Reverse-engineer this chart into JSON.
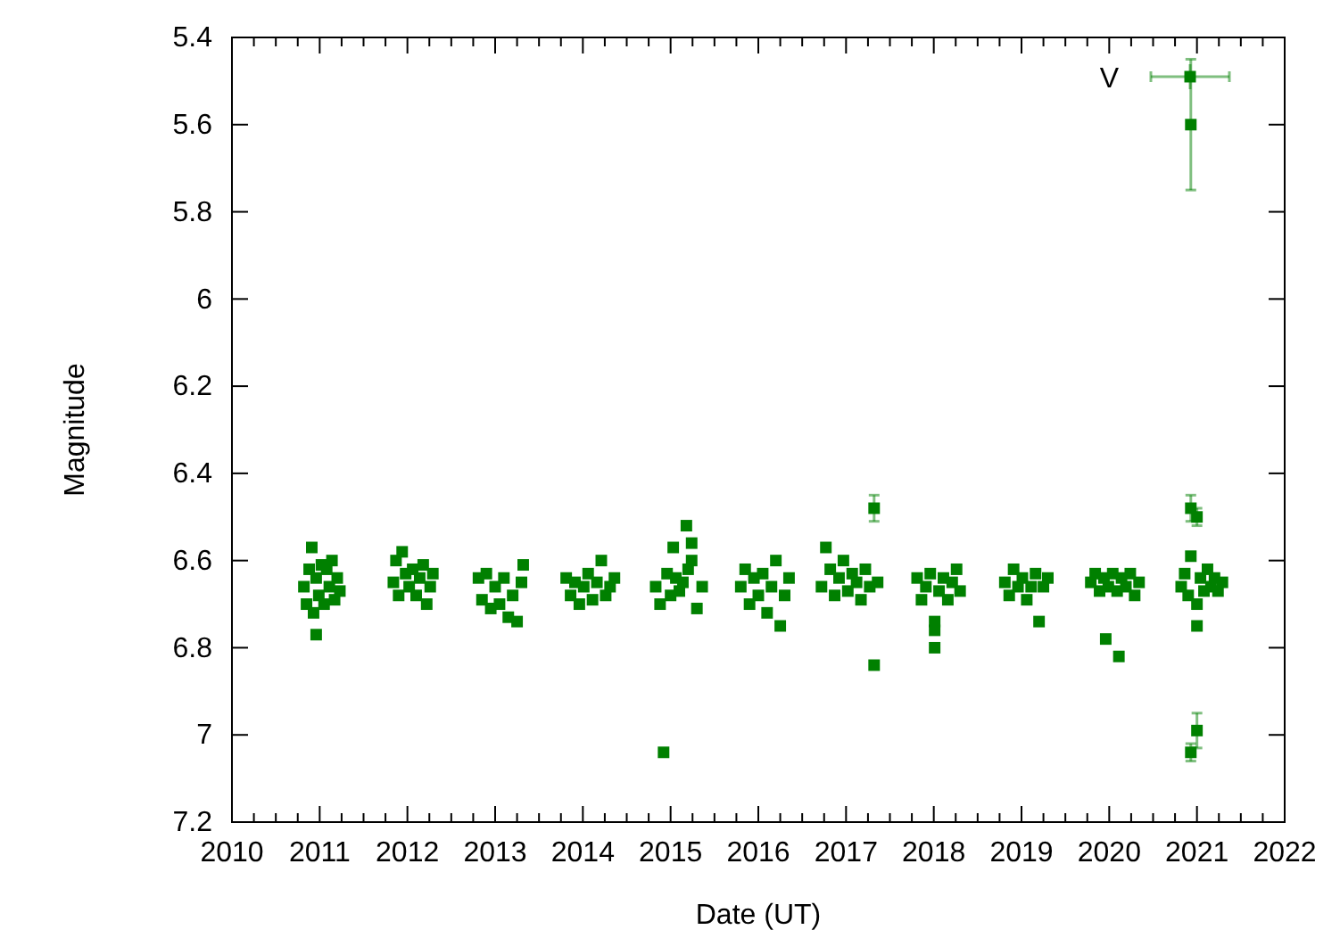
{
  "chart_data": {
    "type": "scatter",
    "xlabel": "Date (UT)",
    "ylabel": "Magnitude",
    "xlim": [
      2010,
      2022
    ],
    "ylim": [
      7.2,
      5.4
    ],
    "xticks": [
      2010,
      {
        "value": 2010.25,
        "label": null
      },
      {
        "value": 2010.5,
        "label": null
      },
      {
        "value": 2010.75,
        "label": null
      },
      2011,
      {
        "value": 2011.25,
        "label": null
      },
      {
        "value": 2011.5,
        "label": null
      },
      {
        "value": 2011.75,
        "label": null
      },
      2012,
      {
        "value": 2012.25,
        "label": null
      },
      {
        "value": 2012.5,
        "label": null
      },
      {
        "value": 2012.75,
        "label": null
      },
      2013,
      {
        "value": 2013.25,
        "label": null
      },
      {
        "value": 2013.5,
        "label": null
      },
      {
        "value": 2013.75,
        "label": null
      },
      2014,
      {
        "value": 2014.25,
        "label": null
      },
      {
        "value": 2014.5,
        "label": null
      },
      {
        "value": 2014.75,
        "label": null
      },
      2015,
      {
        "value": 2015.25,
        "label": null
      },
      {
        "value": 2015.5,
        "label": null
      },
      {
        "value": 2015.75,
        "label": null
      },
      2016,
      {
        "value": 2016.25,
        "label": null
      },
      {
        "value": 2016.5,
        "label": null
      },
      {
        "value": 2016.75,
        "label": null
      },
      2017,
      {
        "value": 2017.25,
        "label": null
      },
      {
        "value": 2017.5,
        "label": null
      },
      {
        "value": 2017.75,
        "label": null
      },
      2018,
      {
        "value": 2018.25,
        "label": null
      },
      {
        "value": 2018.5,
        "label": null
      },
      {
        "value": 2018.75,
        "label": null
      },
      2019,
      {
        "value": 2019.25,
        "label": null
      },
      {
        "value": 2019.5,
        "label": null
      },
      {
        "value": 2019.75,
        "label": null
      },
      2020,
      {
        "value": 2020.25,
        "label": null
      },
      {
        "value": 2020.5,
        "label": null
      },
      {
        "value": 2020.75,
        "label": null
      },
      2021,
      {
        "value": 2021.25,
        "label": null
      },
      {
        "value": 2021.5,
        "label": null
      },
      {
        "value": 2021.75,
        "label": null
      },
      2022
    ],
    "yticks": [
      5.4,
      5.6,
      5.8,
      6,
      6.2,
      6.4,
      6.6,
      6.8,
      7,
      7.2
    ],
    "grid": false,
    "legend": "top right",
    "marker": "square",
    "series": [
      {
        "name": "V",
        "color": "#008000",
        "x": [
          2010.82,
          2010.85,
          2010.88,
          2010.91,
          2010.93,
          2010.96,
          2010.96,
          2010.99,
          2011.02,
          2011.05,
          2011.08,
          2011.11,
          2011.14,
          2011.17,
          2011.2,
          2011.23,
          2011.84,
          2011.87,
          2011.9,
          2011.94,
          2011.98,
          2012.02,
          2012.06,
          2012.1,
          2012.14,
          2012.18,
          2012.22,
          2012.26,
          2012.29,
          2012.81,
          2012.85,
          2012.9,
          2012.95,
          2013.0,
          2013.05,
          2013.1,
          2013.15,
          2013.2,
          2013.25,
          2013.3,
          2013.32,
          2013.81,
          2013.86,
          2013.91,
          2013.96,
          2014.01,
          2014.06,
          2014.11,
          2014.16,
          2014.21,
          2014.26,
          2014.31,
          2014.36,
          2014.83,
          2014.88,
          2014.92,
          2014.96,
          2015.0,
          2015.03,
          2015.06,
          2015.1,
          2015.14,
          2015.18,
          2015.2,
          2015.24,
          2015.24,
          2015.3,
          2015.36,
          2015.8,
          2015.85,
          2015.9,
          2015.95,
          2016.0,
          2016.05,
          2016.1,
          2016.15,
          2016.2,
          2016.25,
          2016.3,
          2016.35,
          2016.72,
          2016.77,
          2016.82,
          2016.87,
          2016.92,
          2016.97,
          2017.02,
          2017.07,
          2017.12,
          2017.17,
          2017.22,
          2017.27,
          2017.32,
          2017.32,
          2017.36,
          2017.81,
          2017.86,
          2017.91,
          2017.96,
          2018.01,
          2018.01,
          2018.01,
          2018.06,
          2018.11,
          2018.16,
          2018.21,
          2018.26,
          2018.3,
          2018.81,
          2018.86,
          2018.91,
          2018.96,
          2019.01,
          2019.06,
          2019.11,
          2019.16,
          2019.2,
          2019.25,
          2019.3,
          2019.79,
          2019.84,
          2019.89,
          2019.94,
          2019.96,
          2019.99,
          2020.04,
          2020.09,
          2020.11,
          2020.14,
          2020.19,
          2020.24,
          2020.29,
          2020.34,
          2020.82,
          2020.86,
          2020.9,
          2020.93,
          2020.93,
          2020.93,
          2020.93,
          2021.0,
          2021.0,
          2021.0,
          2021.0,
          2021.04,
          2021.08,
          2021.12,
          2021.16,
          2021.2,
          2021.24,
          2021.29
        ],
        "values": [
          6.66,
          6.7,
          6.62,
          6.57,
          6.72,
          6.64,
          6.77,
          6.68,
          6.61,
          6.7,
          6.62,
          6.66,
          6.6,
          6.69,
          6.64,
          6.67,
          6.65,
          6.6,
          6.68,
          6.58,
          6.63,
          6.66,
          6.62,
          6.68,
          6.64,
          6.61,
          6.7,
          6.66,
          6.63,
          6.64,
          6.69,
          6.63,
          6.71,
          6.66,
          6.7,
          6.64,
          6.73,
          6.68,
          6.74,
          6.65,
          6.61,
          6.64,
          6.68,
          6.65,
          6.7,
          6.66,
          6.63,
          6.69,
          6.65,
          6.6,
          6.68,
          6.66,
          6.64,
          6.66,
          6.7,
          7.04,
          6.63,
          6.68,
          6.57,
          6.64,
          6.67,
          6.65,
          6.52,
          6.62,
          6.56,
          6.6,
          6.71,
          6.66,
          6.66,
          6.62,
          6.7,
          6.64,
          6.68,
          6.63,
          6.72,
          6.66,
          6.6,
          6.75,
          6.68,
          6.64,
          6.66,
          6.57,
          6.62,
          6.68,
          6.64,
          6.6,
          6.67,
          6.63,
          6.65,
          6.69,
          6.62,
          6.66,
          6.48,
          6.84,
          6.65,
          6.64,
          6.69,
          6.66,
          6.63,
          6.74,
          6.76,
          6.8,
          6.67,
          6.64,
          6.69,
          6.65,
          6.62,
          6.67,
          6.65,
          6.68,
          6.62,
          6.66,
          6.64,
          6.69,
          6.66,
          6.63,
          6.74,
          6.66,
          6.64,
          6.65,
          6.63,
          6.67,
          6.64,
          6.78,
          6.66,
          6.63,
          6.67,
          6.82,
          6.64,
          6.66,
          6.63,
          6.68,
          6.65,
          6.66,
          6.63,
          6.68,
          5.6,
          6.48,
          6.59,
          7.04,
          6.5,
          6.75,
          6.99,
          6.7,
          6.64,
          6.67,
          6.62,
          6.66,
          6.64,
          6.67,
          6.65
        ],
        "errors": [
          null,
          null,
          null,
          null,
          null,
          null,
          null,
          null,
          null,
          null,
          null,
          null,
          null,
          null,
          null,
          null,
          null,
          null,
          null,
          null,
          null,
          null,
          null,
          null,
          null,
          null,
          null,
          null,
          null,
          null,
          null,
          null,
          null,
          null,
          null,
          null,
          null,
          null,
          null,
          null,
          null,
          null,
          null,
          null,
          null,
          null,
          null,
          null,
          null,
          null,
          null,
          null,
          null,
          null,
          null,
          null,
          null,
          null,
          null,
          null,
          null,
          null,
          null,
          null,
          null,
          null,
          null,
          null,
          null,
          null,
          null,
          null,
          null,
          null,
          null,
          null,
          null,
          null,
          null,
          null,
          null,
          null,
          null,
          null,
          null,
          null,
          null,
          null,
          null,
          null,
          null,
          null,
          0.03,
          null,
          null,
          null,
          null,
          null,
          null,
          null,
          null,
          null,
          null,
          null,
          null,
          null,
          null,
          null,
          null,
          null,
          null,
          null,
          null,
          null,
          null,
          null,
          null,
          null,
          null,
          null,
          null,
          null,
          null,
          null,
          null,
          null,
          null,
          null,
          null,
          null,
          null,
          null,
          null,
          null,
          null,
          null,
          0.15,
          0.03,
          null,
          0.02,
          0.02,
          null,
          0.04,
          null,
          null,
          null,
          null,
          null,
          null,
          null,
          null
        ]
      }
    ]
  }
}
